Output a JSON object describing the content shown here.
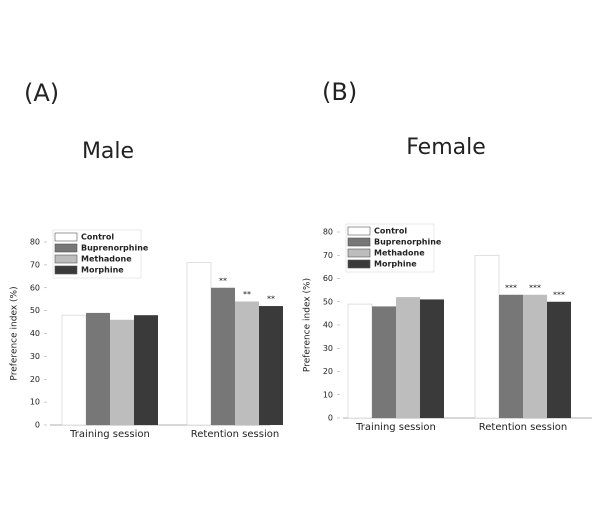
{
  "chart_data": [
    {
      "type": "bar",
      "panel_label": "(A)",
      "title": "Male",
      "ylabel": "Preference index (%)",
      "categories": [
        "Training session",
        "Retention session"
      ],
      "series": [
        {
          "name": "Control",
          "color": "#ffffff",
          "values": [
            48,
            71
          ],
          "stars": [
            null,
            null
          ]
        },
        {
          "name": "Buprenorphine",
          "color": "#777777",
          "values": [
            49,
            60
          ],
          "stars": [
            null,
            "**"
          ]
        },
        {
          "name": "Methadone",
          "color": "#bdbdbd",
          "values": [
            46,
            54
          ],
          "stars": [
            null,
            "**"
          ]
        },
        {
          "name": "Morphine",
          "color": "#3a3a3a",
          "values": [
            48,
            52
          ],
          "stars": [
            null,
            "**"
          ]
        }
      ],
      "ylim": [
        0,
        80
      ],
      "yticks": [
        0,
        10,
        20,
        30,
        40,
        50,
        60,
        70,
        80
      ]
    },
    {
      "type": "bar",
      "panel_label": "(B)",
      "title": "Female",
      "ylabel": "Preference index (%)",
      "categories": [
        "Training session",
        "Retention session"
      ],
      "series": [
        {
          "name": "Control",
          "color": "#ffffff",
          "values": [
            49,
            70
          ],
          "stars": [
            null,
            null
          ]
        },
        {
          "name": "Buprenorphine",
          "color": "#777777",
          "values": [
            48,
            53
          ],
          "stars": [
            null,
            "***"
          ]
        },
        {
          "name": "Methadone",
          "color": "#bdbdbd",
          "values": [
            52,
            53
          ],
          "stars": [
            null,
            "***"
          ]
        },
        {
          "name": "Morphine",
          "color": "#3a3a3a",
          "values": [
            51,
            50
          ],
          "stars": [
            null,
            "***"
          ]
        }
      ],
      "ylim": [
        0,
        80
      ],
      "yticks": [
        0,
        10,
        20,
        30,
        40,
        50,
        60,
        70,
        80
      ]
    }
  ]
}
